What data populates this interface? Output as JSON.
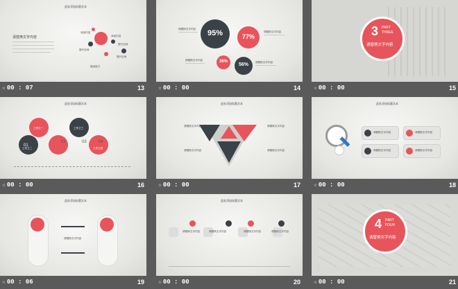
{
  "colors": {
    "accent": "#e8545b",
    "dark": "#3a4248",
    "background": "#5a5a5a"
  },
  "slides": [
    {
      "time": "00 : 07",
      "number": "13",
      "title": "此处添加标题文本",
      "heading": "请替换文字内容",
      "labels": [
        "添加内容",
        "添加内容",
        "提升空间",
        "提升空间",
        "增加能力",
        "提升空间"
      ]
    },
    {
      "time": "00 : 00",
      "number": "14",
      "stats": [
        "95%",
        "77%",
        "36%",
        "56%"
      ],
      "label": "请替换文字内容"
    },
    {
      "time": "00 : 00",
      "number": "15",
      "badge_number": "3",
      "part": "PART",
      "part_word": "THREE",
      "subtitle": "请替换文字内容"
    },
    {
      "time": "00 : 00",
      "number": "16",
      "title": "此处添加标题文本",
      "step_nums": [
        "01",
        "02",
        "03",
        "04"
      ],
      "steps": [
        "工作之一",
        "工作之二",
        "工作之三",
        "工作之四"
      ],
      "step_head": "添加"
    },
    {
      "time": "00 : 00",
      "number": "17",
      "title": "此处添加标题文本",
      "label": "请替换文字内容"
    },
    {
      "time": "00 : 00",
      "number": "18",
      "title": "此处添加标题文本",
      "label": "请替换文字内容"
    },
    {
      "time": "00 : 06",
      "number": "19",
      "title": "此处添加标题文本",
      "label": "请替换文字内容"
    },
    {
      "time": "00 : 00",
      "number": "20",
      "title": "此处添加标题文本",
      "label": "请替换文字内容"
    },
    {
      "time": "00 : 00",
      "number": "21",
      "badge_number": "4",
      "part": "PART",
      "part_word": "FOUR",
      "subtitle": "请替换文字内容"
    }
  ]
}
